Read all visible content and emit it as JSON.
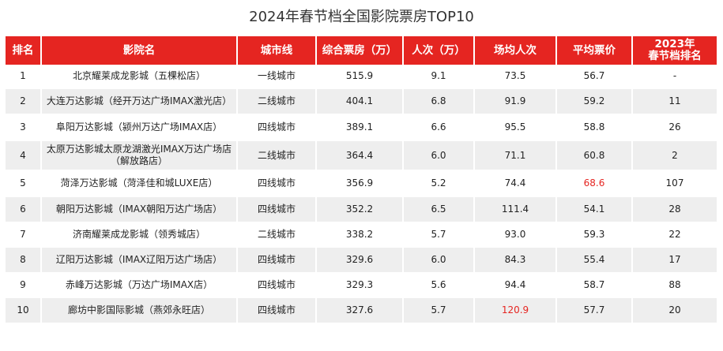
{
  "chart_data": {
    "type": "table",
    "title": "2024年春节档全国影院票房TOP10",
    "columns": [
      "排名",
      "影院名",
      "城市线",
      "综合票房（万）",
      "人次（万）",
      "场均人次",
      "平均票价",
      "2023年\n春节档排名"
    ],
    "rows": [
      [
        "1",
        "北京耀莱成龙影城（五棵松店）",
        "一线城市",
        "515.9",
        "9.1",
        "73.5",
        "56.7",
        "-"
      ],
      [
        "2",
        "大连万达影城（经开万达广场IMAX激光店）",
        "二线城市",
        "404.1",
        "6.8",
        "91.9",
        "59.2",
        "11"
      ],
      [
        "3",
        "阜阳万达影城（颍州万达广场IMAX店）",
        "四线城市",
        "389.1",
        "6.6",
        "95.5",
        "58.8",
        "26"
      ],
      [
        "4",
        "太原万达影城太原龙湖激光IMAX万达广场店\n（解放路店）",
        "二线城市",
        "364.4",
        "6.0",
        "71.1",
        "60.8",
        "2"
      ],
      [
        "5",
        "菏泽万达影城（菏泽佳和城LUXE店）",
        "四线城市",
        "356.9",
        "5.2",
        "74.4",
        "68.6",
        "107"
      ],
      [
        "6",
        "朝阳万达影城（IMAX朝阳万达广场店）",
        "四线城市",
        "352.2",
        "6.5",
        "111.4",
        "54.1",
        "28"
      ],
      [
        "7",
        "济南耀莱成龙影城（领秀城店）",
        "二线城市",
        "338.2",
        "5.7",
        "93.0",
        "59.3",
        "22"
      ],
      [
        "8",
        "辽阳万达影城（IMAX辽阳万达广场店）",
        "四线城市",
        "329.6",
        "6.0",
        "84.3",
        "55.4",
        "17"
      ],
      [
        "9",
        "赤峰万达影城（万达广场IMAX店）",
        "四线城市",
        "329.3",
        "5.6",
        "94.4",
        "58.7",
        "88"
      ],
      [
        "10",
        "廊坊中影国际影城（燕郊永旺店）",
        "四线城市",
        "327.6",
        "5.7",
        "120.9",
        "57.7",
        "20"
      ]
    ],
    "highlights": [
      {
        "row": 4,
        "col": 6,
        "color": "#e52521"
      },
      {
        "row": 9,
        "col": 5,
        "color": "#e52521"
      }
    ]
  }
}
